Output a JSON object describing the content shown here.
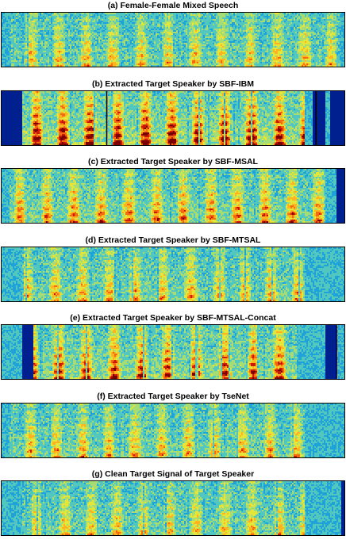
{
  "figure": {
    "panels": [
      {
        "id": "a",
        "title": "(a) Female-Female Mixed Speech",
        "style": {
          "energy": 0.45,
          "start": 0.02,
          "end": 0.985,
          "edge_blue": []
        }
      },
      {
        "id": "b",
        "title": "(b) Extracted Target Speaker by SBF-IBM",
        "style": {
          "energy": 0.9,
          "start": 0.06,
          "end": 0.88,
          "edge_blue": [
            [
              0,
              0.06
            ],
            [
              0.905,
              0.94
            ],
            [
              0.955,
              1.0
            ]
          ],
          "dark_lines": [
            0.305,
            0.915
          ]
        }
      },
      {
        "id": "c",
        "title": "(c) Extracted Target Speaker by SBF-MSAL",
        "style": {
          "energy": 0.6,
          "start": 0.02,
          "end": 0.94,
          "edge_blue": [
            [
              0.975,
              1.0
            ]
          ]
        }
      },
      {
        "id": "d",
        "title": "(d) Extracted Target Speaker by SBF-MTSAL",
        "style": {
          "energy": 0.5,
          "start": 0.06,
          "end": 0.88,
          "edge_blue": []
        }
      },
      {
        "id": "e",
        "title": "(e) Extracted Target Speaker by SBF-MTSAL-Concat",
        "style": {
          "energy": 0.75,
          "start": 0.09,
          "end": 0.86,
          "edge_blue": [
            [
              0.06,
              0.09
            ],
            [
              0.94,
              0.975
            ]
          ],
          "dark_lines": [
            0.975
          ]
        }
      },
      {
        "id": "f",
        "title": "(f) Extracted Target Speaker by TseNet",
        "style": {
          "energy": 0.5,
          "start": 0.02,
          "end": 0.88,
          "edge_blue": []
        }
      },
      {
        "id": "g",
        "title": "(g) Clean Target Signal of Target Speaker",
        "style": {
          "energy": 0.45,
          "start": 0.06,
          "end": 0.88,
          "edge_blue": [
            [
              0.99,
              1.0
            ]
          ]
        }
      }
    ],
    "colormap": [
      "#00208f",
      "#0b5fd0",
      "#1fa2d8",
      "#52c7c0",
      "#a6dc74",
      "#e6e53a",
      "#fdb421",
      "#f26b10",
      "#c91a05",
      "#7a0000"
    ]
  }
}
